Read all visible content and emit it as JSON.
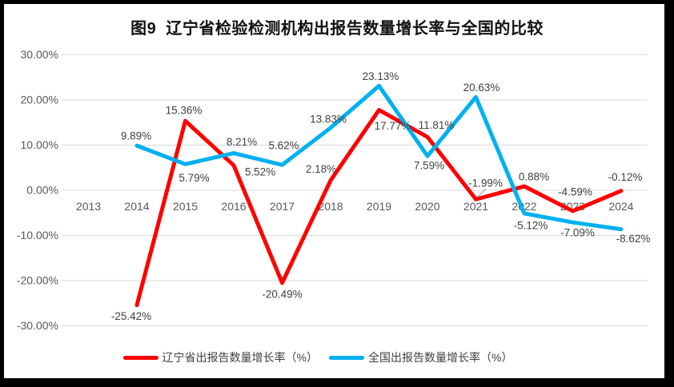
{
  "chart_data": {
    "type": "line",
    "title": "图9  辽宁省检验检测机构出报告数量增长率与全国的比较",
    "categories": [
      "2013",
      "2014",
      "2015",
      "2016",
      "2017",
      "2018",
      "2019",
      "2020",
      "2021",
      "2022",
      "2023",
      "2024"
    ],
    "series": [
      {
        "name": "辽宁省出报告数量增长率（%）",
        "color": "#ff0000",
        "values": [
          null,
          -25.42,
          15.36,
          5.52,
          -20.49,
          2.18,
          17.77,
          11.81,
          -1.99,
          0.88,
          -4.59,
          -0.12
        ]
      },
      {
        "name": "全国出报告数量增长率（%）",
        "color": "#00b0f0",
        "values": [
          null,
          9.89,
          5.79,
          8.21,
          5.62,
          13.83,
          23.13,
          7.59,
          20.63,
          -5.12,
          -7.09,
          -8.62
        ]
      }
    ],
    "xlabel": "",
    "ylabel": "",
    "ylim": [
      -30,
      30
    ],
    "y_tick_step": 10,
    "y_ticks": [
      "30.00%",
      "20.00%",
      "10.00%",
      "0.00%",
      "-10.00%",
      "-20.00%",
      "-30.00%"
    ],
    "y_tick_values": [
      30,
      20,
      10,
      0,
      -10,
      -20,
      -30
    ],
    "data_label_format": "0.00%",
    "grid": true,
    "legend_position": "bottom",
    "colors": {
      "gridline": "#d9d9d9",
      "axis_text": "#595959",
      "data_label": "#404040",
      "leader_line": "#a6a6a6",
      "frame_border": "#000000",
      "background": "#ffffff"
    }
  }
}
